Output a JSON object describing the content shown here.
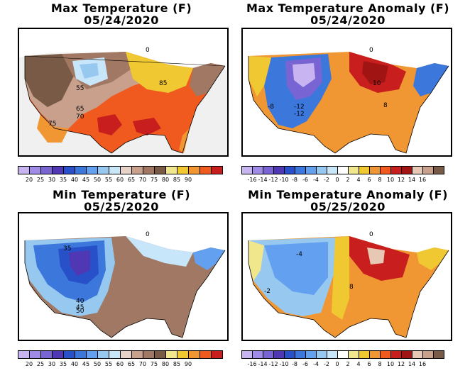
{
  "panels": [
    {
      "title": "Max Temperature (F)",
      "date": "05/24/2020"
    },
    {
      "title": "Max Temperature Anomaly (F)",
      "date": "05/24/2020"
    },
    {
      "title": "Min Temperature (F)",
      "date": "05/25/2020"
    },
    {
      "title": "Min Temperature Anomaly (F)",
      "date": "05/25/2020"
    }
  ],
  "temp_scale": {
    "colors": [
      "#c8b4f0",
      "#a08ce6",
      "#7864d2",
      "#5038b4",
      "#2850c8",
      "#3c78dc",
      "#64a0f0",
      "#96c8f0",
      "#c8e6fa",
      "#e6d2c8",
      "#c8a08c",
      "#a07864",
      "#785a46",
      "#f0e68c",
      "#f0c832",
      "#f09632",
      "#f05a1e",
      "#c81e1e"
    ],
    "ticks": [
      "20",
      "25",
      "30",
      "35",
      "40",
      "45",
      "50",
      "55",
      "60",
      "65",
      "70",
      "75",
      "80",
      "85",
      "90"
    ]
  },
  "anom_scale": {
    "colors": [
      "#c8b4f0",
      "#a08ce6",
      "#7864d2",
      "#5038b4",
      "#2850c8",
      "#3c78dc",
      "#64a0f0",
      "#96c8f0",
      "#c8e6fa",
      "#ffffff",
      "#f0e68c",
      "#f0c832",
      "#f09632",
      "#f05a1e",
      "#c81e1e",
      "#a01414",
      "#e6c8b4",
      "#c8a08c",
      "#785a46"
    ],
    "ticks": [
      "-16",
      "-14",
      "-12",
      "-10",
      "-8",
      "-6",
      "-4",
      "-2",
      "0",
      "2",
      "4",
      "6",
      "8",
      "10",
      "12",
      "14",
      "16"
    ]
  },
  "contour_labels": {
    "max_temp": [
      "55",
      "65",
      "70",
      "75",
      "85",
      "0"
    ],
    "max_anom": [
      "10",
      "-8",
      "-12",
      "-12",
      "8",
      "0"
    ],
    "min_temp": [
      "35",
      "40",
      "45",
      "50",
      "0"
    ],
    "min_anom": [
      "-4",
      "8",
      "-2",
      "0"
    ]
  }
}
